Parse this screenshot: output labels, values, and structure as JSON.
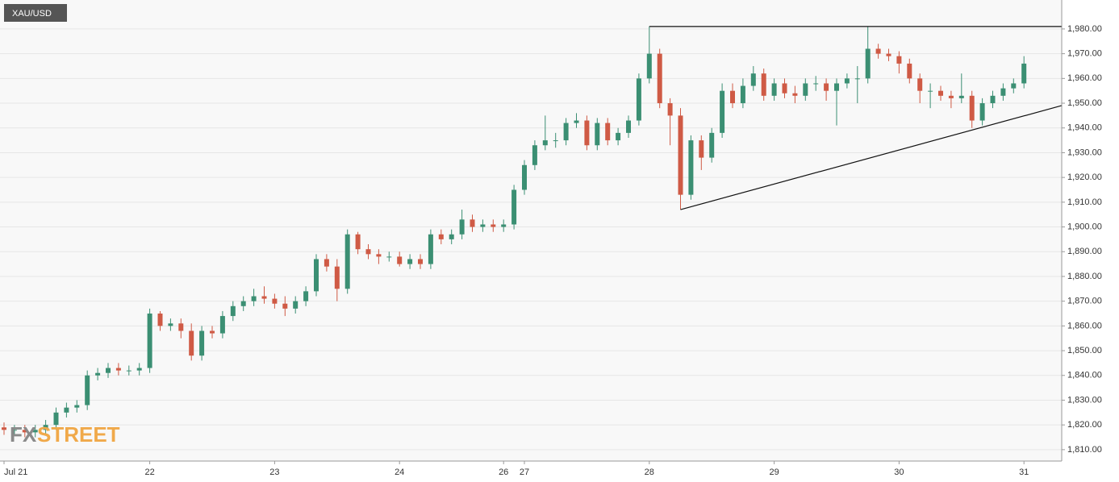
{
  "chart_data": {
    "type": "candlestick",
    "title": "XAU/USD",
    "logo": {
      "fx": "FX",
      "street": "STREET"
    },
    "categories": [
      "Jul 21",
      null,
      null,
      null,
      null,
      null,
      null,
      null,
      null,
      null,
      null,
      null,
      null,
      null,
      "22",
      null,
      null,
      null,
      null,
      null,
      null,
      null,
      null,
      null,
      null,
      null,
      "23",
      null,
      null,
      null,
      null,
      null,
      null,
      null,
      null,
      null,
      null,
      null,
      "24",
      null,
      null,
      null,
      null,
      null,
      null,
      null,
      null,
      null,
      "26",
      null,
      "27",
      null,
      null,
      null,
      null,
      null,
      null,
      null,
      null,
      null,
      null,
      null,
      "28",
      null,
      null,
      null,
      null,
      null,
      null,
      null,
      null,
      null,
      null,
      null,
      "29",
      null,
      null,
      null,
      null,
      null,
      null,
      null,
      null,
      null,
      null,
      null,
      "30",
      null,
      null,
      null,
      null,
      null,
      null,
      null,
      null,
      null,
      null,
      null,
      "31"
    ],
    "open": [
      1819,
      1818,
      1818,
      1817,
      1818,
      1820,
      1825,
      1827,
      1828,
      1840,
      1841,
      1843,
      1842,
      1842,
      1843,
      1865,
      1860,
      1861,
      1858,
      1848,
      1858,
      1857,
      1864,
      1868,
      1870,
      1872,
      1871,
      1869,
      1867,
      1870,
      1874,
      1887,
      1884,
      1875,
      1897,
      1891,
      1889,
      1888,
      1888,
      1885,
      1887,
      1885,
      1897,
      1895,
      1897,
      1903,
      1900,
      1901,
      1900,
      1901,
      1915,
      1925,
      1933,
      1935,
      1935,
      1942,
      1943,
      1933,
      1942,
      1935,
      1938,
      1943,
      1960,
      1970,
      1950,
      1945,
      1913,
      1935,
      1928,
      1938,
      1955,
      1950,
      1957,
      1962,
      1953,
      1958,
      1954,
      1953,
      1958,
      1958,
      1955,
      1958,
      1960,
      1960,
      1972,
      1970,
      1969,
      1966,
      1960,
      1955,
      1955,
      1953,
      1952,
      1953,
      1943,
      1950,
      1953,
      1956,
      1958
    ],
    "high": [
      1821,
      1820,
      1820,
      1820,
      1822,
      1827,
      1829,
      1830,
      1842,
      1843,
      1845,
      1845,
      1844,
      1845,
      1867,
      1866,
      1863,
      1863,
      1861,
      1860,
      1860,
      1866,
      1870,
      1872,
      1875,
      1876,
      1873,
      1872,
      1872,
      1876,
      1889,
      1889,
      1887,
      1899,
      1898,
      1893,
      1891,
      1890,
      1890,
      1889,
      1889,
      1899,
      1899,
      1899,
      1907,
      1905,
      1903,
      1903,
      1903,
      1917,
      1927,
      1935,
      1945,
      1938,
      1944,
      1946,
      1945,
      1944,
      1944,
      1940,
      1945,
      1962,
      1981,
      1972,
      1952,
      1948,
      1937,
      1937,
      1940,
      1958,
      1958,
      1960,
      1965,
      1964,
      1960,
      1960,
      1957,
      1960,
      1961,
      1960,
      1960,
      1962,
      1965,
      1981,
      1974,
      1972,
      1971,
      1968,
      1962,
      1958,
      1957,
      1955,
      1962,
      1955,
      1952,
      1955,
      1958,
      1960,
      1969
    ],
    "low": [
      1816,
      1816,
      1815,
      1815,
      1816,
      1818,
      1823,
      1825,
      1826,
      1838,
      1839,
      1840,
      1840,
      1840,
      1841,
      1858,
      1858,
      1855,
      1846,
      1846,
      1855,
      1855,
      1862,
      1866,
      1868,
      1869,
      1867,
      1864,
      1865,
      1868,
      1872,
      1882,
      1870,
      1873,
      1889,
      1887,
      1885,
      1886,
      1884,
      1883,
      1883,
      1883,
      1893,
      1893,
      1895,
      1898,
      1898,
      1898,
      1898,
      1899,
      1913,
      1923,
      1931,
      1932,
      1933,
      1940,
      1931,
      1931,
      1933,
      1933,
      1936,
      1941,
      1958,
      1948,
      1933,
      1907,
      1911,
      1923,
      1926,
      1936,
      1948,
      1948,
      1955,
      1951,
      1951,
      1952,
      1950,
      1951,
      1955,
      1951,
      1941,
      1956,
      1950,
      1958,
      1968,
      1967,
      1962,
      1958,
      1950,
      1948,
      1951,
      1948,
      1950,
      1940,
      1941,
      1948,
      1951,
      1954,
      1956
    ],
    "close": [
      1818,
      1818,
      1817,
      1818,
      1820,
      1825,
      1827,
      1828,
      1840,
      1841,
      1843,
      1842,
      1842,
      1843,
      1865,
      1860,
      1861,
      1858,
      1848,
      1858,
      1857,
      1864,
      1868,
      1870,
      1872,
      1871,
      1869,
      1867,
      1870,
      1874,
      1887,
      1884,
      1875,
      1897,
      1891,
      1889,
      1888,
      1888,
      1885,
      1887,
      1885,
      1897,
      1895,
      1897,
      1903,
      1900,
      1901,
      1900,
      1901,
      1915,
      1925,
      1933,
      1935,
      1935,
      1942,
      1943,
      1933,
      1942,
      1935,
      1938,
      1943,
      1960,
      1970,
      1950,
      1945,
      1913,
      1935,
      1928,
      1938,
      1955,
      1950,
      1957,
      1962,
      1953,
      1958,
      1954,
      1953,
      1958,
      1958,
      1955,
      1958,
      1960,
      1960,
      1972,
      1970,
      1969,
      1966,
      1960,
      1955,
      1955,
      1953,
      1952,
      1953,
      1943,
      1950,
      1953,
      1956,
      1958,
      1966
    ],
    "up_color": "#3b8f73",
    "down_color": "#cf5a45",
    "trendlines": [
      {
        "x": [
          62,
          101.6
        ],
        "y": [
          1981,
          1981
        ]
      },
      {
        "x": [
          65,
          101.6
        ],
        "y": [
          1907,
          1949
        ]
      }
    ],
    "ylim": [
      1805.4,
      1991.7
    ],
    "yticks": [
      {
        "value": 1810,
        "label": "1,810.00"
      },
      {
        "value": 1820,
        "label": "1,820.00"
      },
      {
        "value": 1830,
        "label": "1,830.00"
      },
      {
        "value": 1840,
        "label": "1,840.00"
      },
      {
        "value": 1850,
        "label": "1,850.00"
      },
      {
        "value": 1860,
        "label": "1,860.00"
      },
      {
        "value": 1870,
        "label": "1,870.00"
      },
      {
        "value": 1880,
        "label": "1,880.00"
      },
      {
        "value": 1890,
        "label": "1,890.00"
      },
      {
        "value": 1900,
        "label": "1,900.00"
      },
      {
        "value": 1910,
        "label": "1,910.00"
      },
      {
        "value": 1920,
        "label": "1,920.00"
      },
      {
        "value": 1930,
        "label": "1,930.00"
      },
      {
        "value": 1940,
        "label": "1,940.00"
      },
      {
        "value": 1950,
        "label": "1,950.00"
      },
      {
        "value": 1960,
        "label": "1,960.00"
      },
      {
        "value": 1970,
        "label": "1,970.00"
      },
      {
        "value": 1980,
        "label": "1,980.00"
      }
    ],
    "grid": true
  }
}
